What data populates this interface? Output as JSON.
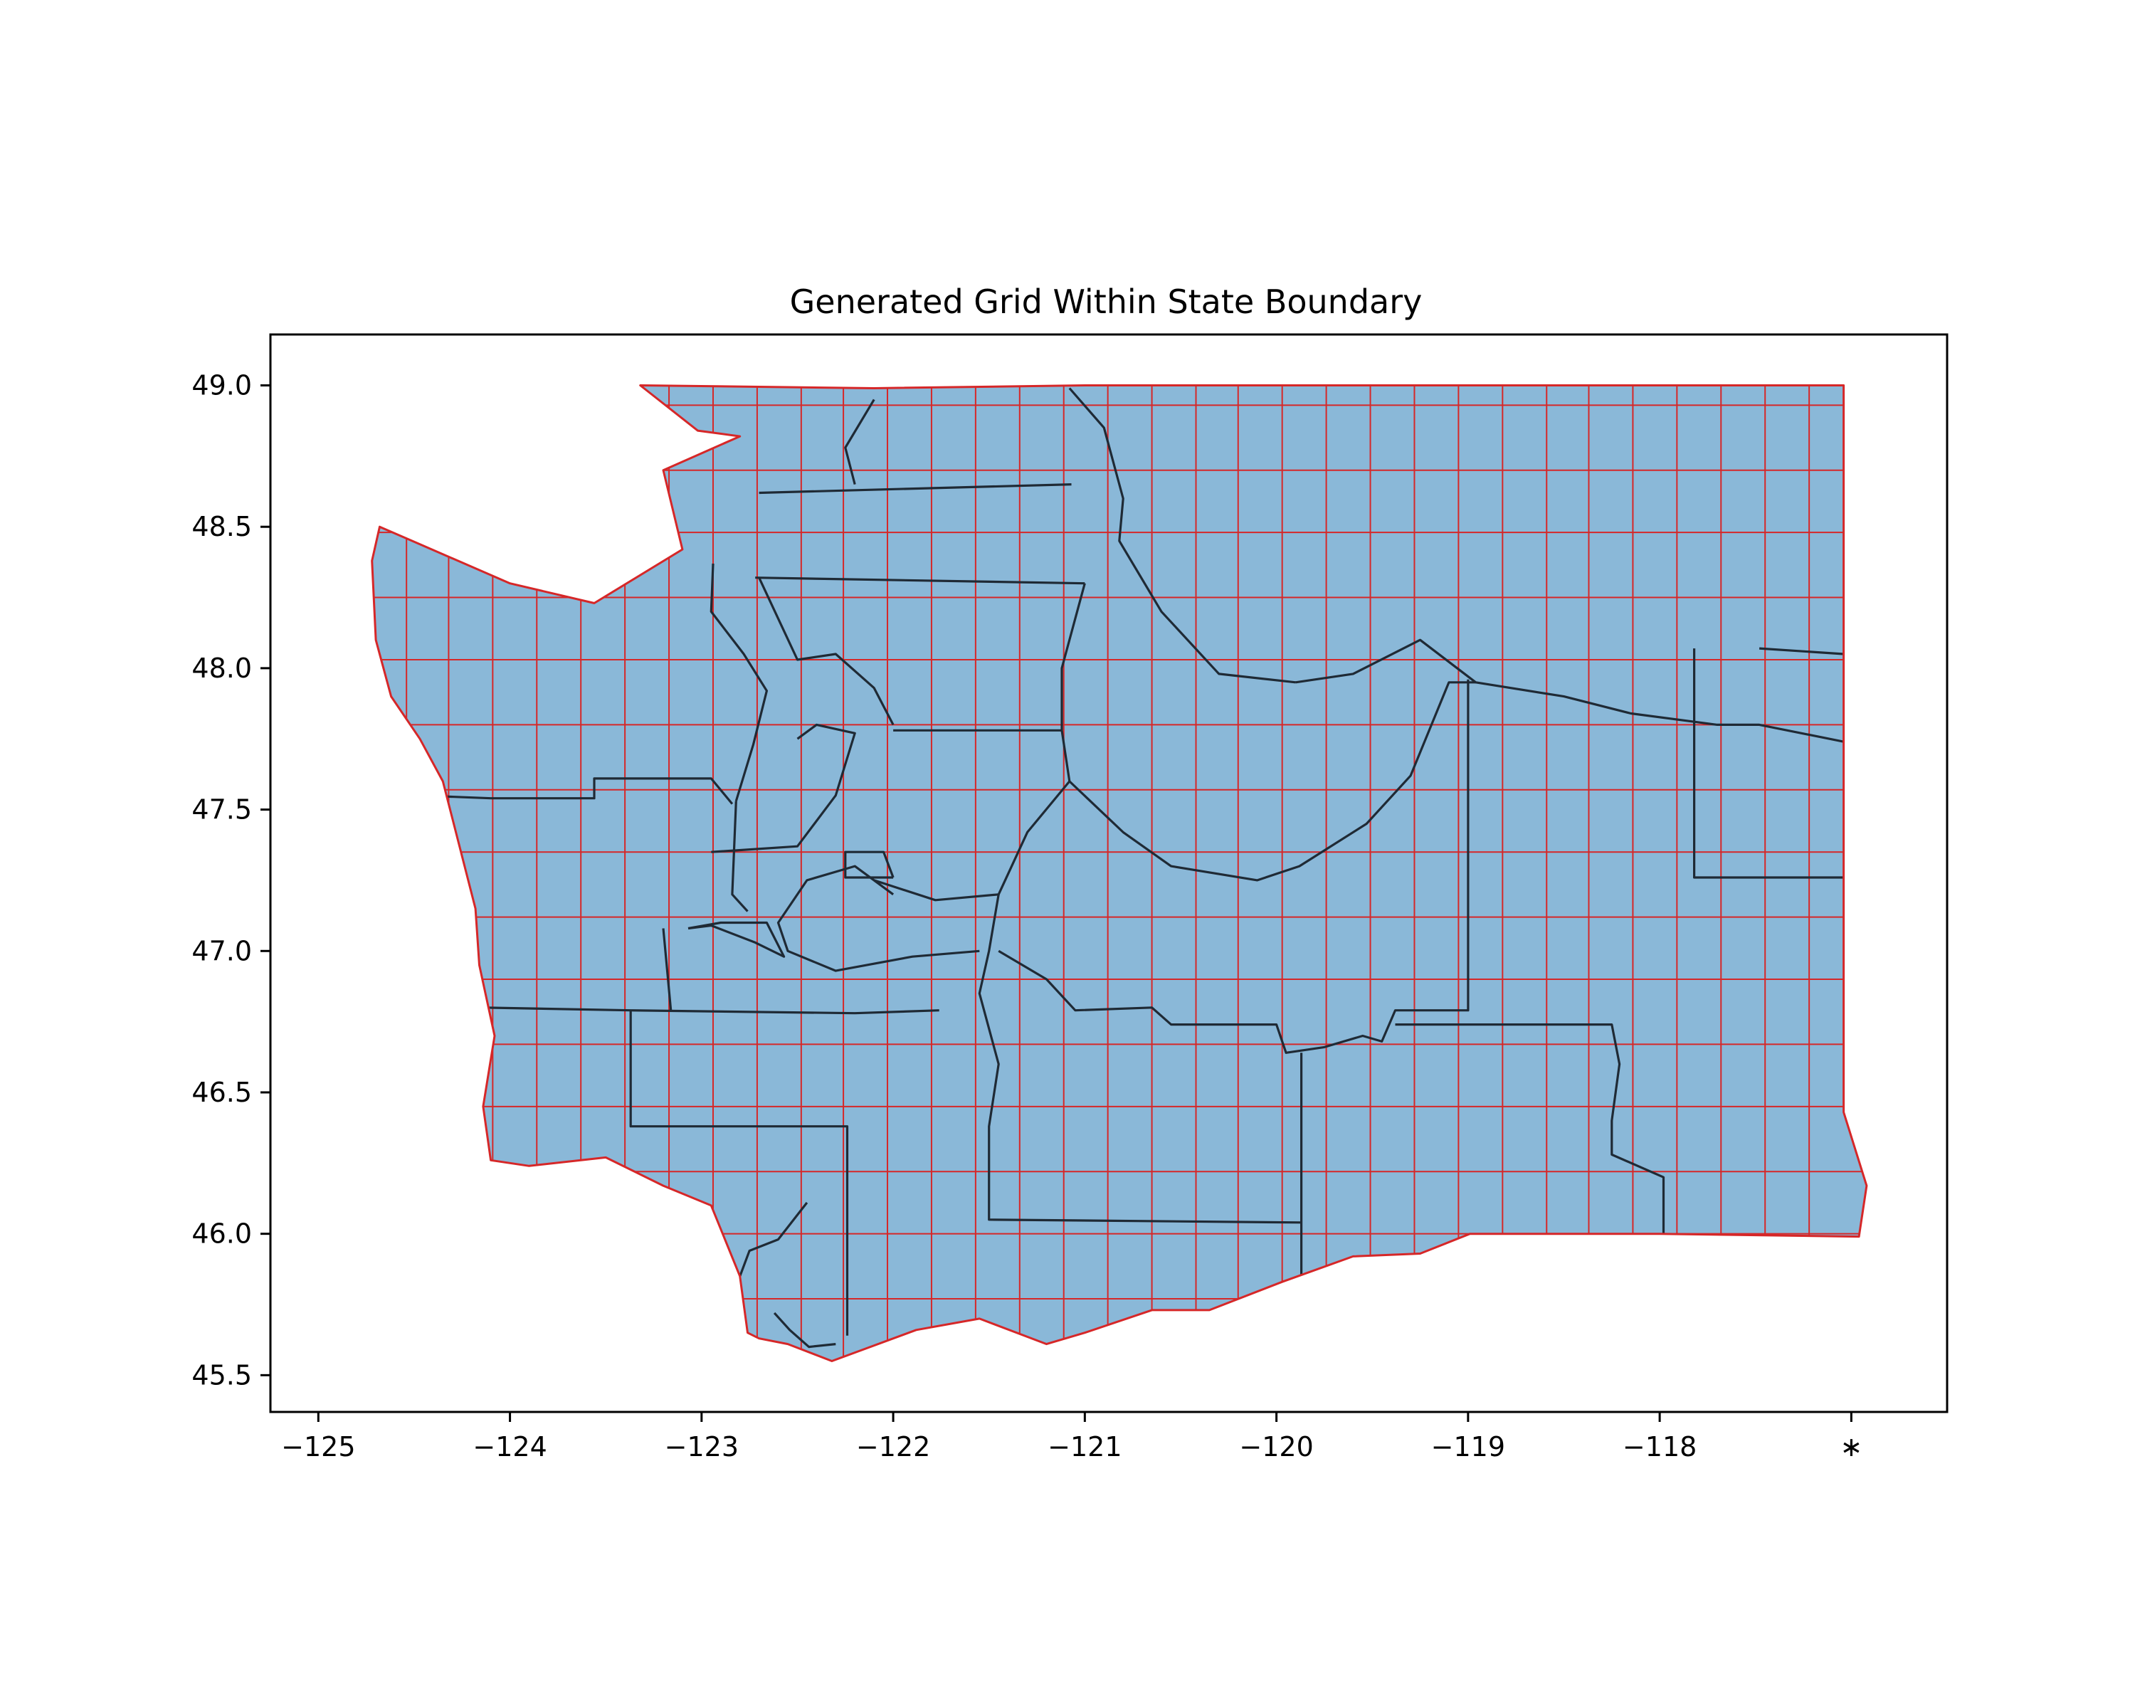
{
  "chart_data": {
    "type": "map",
    "title": "Generated Grid Within State Boundary",
    "xlabel": "",
    "ylabel": "",
    "xlim": [
      -125.25,
      -116.5
    ],
    "ylim": [
      45.37,
      49.18
    ],
    "x_ticks": [
      -125,
      -124,
      -123,
      -122,
      -121,
      -120,
      -119,
      -118,
      -117
    ],
    "x_tick_labels": [
      "−125",
      "−124",
      "−123",
      "−122",
      "−121",
      "−120",
      "−119",
      "−118",
      "∗"
    ],
    "y_ticks": [
      45.5,
      46.0,
      46.5,
      47.0,
      47.5,
      48.0,
      48.5,
      49.0
    ],
    "y_tick_labels": [
      "45.5",
      "46.0",
      "46.5",
      "47.0",
      "47.5",
      "48.0",
      "48.5",
      "49.0"
    ],
    "grid": {
      "lon_lines": [
        -124.54,
        -124.32,
        -124.09,
        -123.86,
        -123.63,
        -123.4,
        -123.17,
        -122.94,
        -122.71,
        -122.48,
        -122.26,
        -122.03,
        -121.8,
        -121.57,
        -121.34,
        -121.11,
        -120.88,
        -120.65,
        -120.42,
        -120.2,
        -119.97,
        -119.74,
        -119.51,
        -119.28,
        -119.05,
        -118.82,
        -118.59,
        -118.37,
        -118.14,
        -117.91,
        -117.68,
        -117.45,
        -117.22
      ],
      "lat_lines": [
        48.93,
        48.7,
        48.48,
        48.25,
        48.03,
        47.8,
        47.57,
        47.35,
        47.12,
        46.9,
        46.67,
        46.45,
        46.22,
        46.0,
        45.77
      ],
      "cell_edge_color": "#d62728"
    },
    "state_boundary": [
      [
        -123.32,
        49.0
      ],
      [
        -122.1,
        48.99
      ],
      [
        -121.0,
        49.0
      ],
      [
        -119.5,
        49.0
      ],
      [
        -118.0,
        49.0
      ],
      [
        -117.04,
        49.0
      ],
      [
        -117.04,
        48.2
      ],
      [
        -117.04,
        47.0
      ],
      [
        -117.04,
        46.43
      ],
      [
        -116.92,
        46.17
      ],
      [
        -116.96,
        45.99
      ],
      [
        -118.0,
        46.0
      ],
      [
        -118.99,
        46.0
      ],
      [
        -119.25,
        45.93
      ],
      [
        -119.6,
        45.92
      ],
      [
        -119.97,
        45.83
      ],
      [
        -120.35,
        45.73
      ],
      [
        -120.65,
        45.73
      ],
      [
        -121.0,
        45.65
      ],
      [
        -121.2,
        45.61
      ],
      [
        -121.55,
        45.7
      ],
      [
        -121.88,
        45.66
      ],
      [
        -122.2,
        45.58
      ],
      [
        -122.32,
        45.55
      ],
      [
        -122.55,
        45.61
      ],
      [
        -122.7,
        45.63
      ],
      [
        -122.76,
        45.65
      ],
      [
        -122.8,
        45.85
      ],
      [
        -122.95,
        46.1
      ],
      [
        -123.2,
        46.17
      ],
      [
        -123.5,
        46.27
      ],
      [
        -123.9,
        46.24
      ],
      [
        -124.1,
        46.26
      ],
      [
        -124.14,
        46.45
      ],
      [
        -124.08,
        46.7
      ],
      [
        -124.16,
        46.95
      ],
      [
        -124.18,
        47.15
      ],
      [
        -124.35,
        47.6
      ],
      [
        -124.47,
        47.75
      ],
      [
        -124.62,
        47.9
      ],
      [
        -124.7,
        48.1
      ],
      [
        -124.72,
        48.38
      ],
      [
        -124.68,
        48.5
      ],
      [
        -124.0,
        48.3
      ],
      [
        -123.56,
        48.23
      ],
      [
        -123.1,
        48.42
      ],
      [
        -123.2,
        48.7
      ],
      [
        -122.8,
        48.82
      ],
      [
        -123.02,
        48.84
      ],
      [
        -123.32,
        49.0
      ]
    ],
    "county_boundaries": [
      [
        [
          -124.48,
          47.55
        ],
        [
          -124.1,
          47.54
        ],
        [
          -123.56,
          47.54
        ],
        [
          -123.56,
          47.61
        ],
        [
          -122.95,
          47.61
        ],
        [
          -122.84,
          47.52
        ]
      ],
      [
        [
          -124.15,
          46.8
        ],
        [
          -123.37,
          46.79
        ],
        [
          -122.2,
          46.78
        ],
        [
          -121.76,
          46.79
        ]
      ],
      [
        [
          -123.37,
          46.79
        ],
        [
          -123.37,
          46.38
        ],
        [
          -122.24,
          46.38
        ],
        [
          -122.24,
          45.64
        ]
      ],
      [
        [
          -122.94,
          48.37
        ],
        [
          -122.95,
          48.2
        ],
        [
          -122.78,
          48.05
        ],
        [
          -122.66,
          47.92
        ],
        [
          -122.73,
          47.73
        ],
        [
          -122.82,
          47.53
        ]
      ],
      [
        [
          -122.82,
          47.53
        ],
        [
          -122.84,
          47.2
        ],
        [
          -122.76,
          47.14
        ]
      ],
      [
        [
          -123.2,
          47.08
        ],
        [
          -123.16,
          46.79
        ]
      ],
      [
        [
          -122.72,
          48.32
        ],
        [
          -121.0,
          48.3
        ]
      ],
      [
        [
          -122.7,
          48.62
        ],
        [
          -121.07,
          48.65
        ]
      ],
      [
        [
          -122.1,
          48.95
        ],
        [
          -122.25,
          48.78
        ],
        [
          -122.2,
          48.65
        ]
      ],
      [
        [
          -121.08,
          48.99
        ],
        [
          -120.9,
          48.85
        ],
        [
          -120.8,
          48.6
        ],
        [
          -120.82,
          48.45
        ],
        [
          -120.6,
          48.2
        ],
        [
          -120.3,
          47.98
        ],
        [
          -119.9,
          47.95
        ]
      ],
      [
        [
          -119.9,
          47.95
        ],
        [
          -119.6,
          47.98
        ],
        [
          -119.25,
          48.1
        ],
        [
          -118.96,
          47.95
        ],
        [
          -118.5,
          47.9
        ],
        [
          -118.15,
          47.84
        ],
        [
          -117.7,
          47.8
        ],
        [
          -117.48,
          47.8
        ],
        [
          -117.04,
          47.74
        ]
      ],
      [
        [
          -121.0,
          48.3
        ],
        [
          -121.12,
          48.0
        ],
        [
          -121.12,
          47.78
        ],
        [
          -121.08,
          47.6
        ],
        [
          -120.8,
          47.42
        ],
        [
          -120.55,
          47.3
        ],
        [
          -120.1,
          47.25
        ],
        [
          -119.88,
          47.3
        ],
        [
          -119.53,
          47.45
        ],
        [
          -119.3,
          47.62
        ],
        [
          -119.1,
          47.95
        ],
        [
          -118.96,
          47.95
        ]
      ],
      [
        [
          -121.12,
          47.78
        ],
        [
          -122.0,
          47.78
        ]
      ],
      [
        [
          -121.08,
          47.6
        ],
        [
          -121.3,
          47.42
        ],
        [
          -121.45,
          47.2
        ],
        [
          -121.78,
          47.18
        ],
        [
          -122.1,
          47.25
        ]
      ],
      [
        [
          -121.45,
          47.2
        ],
        [
          -121.5,
          47.0
        ],
        [
          -121.55,
          46.85
        ],
        [
          -121.45,
          46.6
        ],
        [
          -121.5,
          46.38
        ],
        [
          -121.5,
          46.05
        ],
        [
          -119.87,
          46.04
        ]
      ],
      [
        [
          -121.45,
          47.0
        ],
        [
          -121.2,
          46.9
        ],
        [
          -121.05,
          46.79
        ],
        [
          -120.65,
          46.8
        ],
        [
          -120.55,
          46.74
        ],
        [
          -120.0,
          46.74
        ],
        [
          -119.95,
          46.64
        ],
        [
          -119.75,
          46.66
        ],
        [
          -119.55,
          46.7
        ],
        [
          -119.45,
          46.68
        ],
        [
          -119.38,
          46.79
        ],
        [
          -119.0,
          46.79
        ],
        [
          -119.0,
          47.96
        ]
      ],
      [
        [
          -119.38,
          46.74
        ],
        [
          -118.25,
          46.74
        ],
        [
          -118.21,
          46.6
        ],
        [
          -118.25,
          46.4
        ],
        [
          -118.25,
          46.28
        ],
        [
          -117.98,
          46.2
        ],
        [
          -117.98,
          46.0
        ]
      ],
      [
        [
          -119.87,
          46.64
        ],
        [
          -119.87,
          45.83
        ]
      ],
      [
        [
          -117.82,
          48.07
        ],
        [
          -117.82,
          47.26
        ],
        [
          -117.04,
          47.26
        ]
      ],
      [
        [
          -117.48,
          48.07
        ],
        [
          -117.04,
          48.05
        ]
      ],
      [
        [
          -122.0,
          47.8
        ],
        [
          -122.1,
          47.93
        ],
        [
          -122.3,
          48.05
        ],
        [
          -122.5,
          48.03
        ],
        [
          -122.7,
          48.32
        ]
      ],
      [
        [
          -122.95,
          47.35
        ],
        [
          -122.5,
          47.37
        ],
        [
          -122.3,
          47.55
        ],
        [
          -122.2,
          47.77
        ],
        [
          -122.4,
          47.8
        ],
        [
          -122.5,
          47.75
        ]
      ],
      [
        [
          -122.0,
          47.2
        ],
        [
          -122.2,
          47.3
        ],
        [
          -122.45,
          47.25
        ],
        [
          -122.6,
          47.1
        ],
        [
          -122.55,
          47.0
        ],
        [
          -122.3,
          46.93
        ],
        [
          -121.9,
          46.98
        ],
        [
          -121.55,
          47.0
        ]
      ],
      [
        [
          -122.0,
          47.26
        ],
        [
          -122.25,
          47.26
        ],
        [
          -122.25,
          47.35
        ],
        [
          -122.05,
          47.35
        ],
        [
          -122.0,
          47.26
        ]
      ],
      [
        [
          -122.45,
          46.11
        ],
        [
          -122.6,
          45.98
        ],
        [
          -122.75,
          45.94
        ],
        [
          -122.8,
          45.85
        ]
      ],
      [
        [
          -122.62,
          45.72
        ],
        [
          -122.54,
          45.66
        ],
        [
          -122.44,
          45.6
        ],
        [
          -122.3,
          45.61
        ]
      ],
      [
        [
          -123.07,
          47.08
        ],
        [
          -122.95,
          47.09
        ],
        [
          -122.72,
          47.03
        ],
        [
          -122.57,
          46.98
        ],
        [
          -122.66,
          47.1
        ],
        [
          -122.9,
          47.1
        ],
        [
          -123.07,
          47.08
        ]
      ]
    ],
    "series": [
      {
        "name": "",
        "face_color": "#8ab8d8",
        "edge_color": "#d62728"
      },
      {
        "name": "",
        "edge_color": "#1f2a35"
      }
    ],
    "grid_visible": false,
    "legend": "none"
  }
}
